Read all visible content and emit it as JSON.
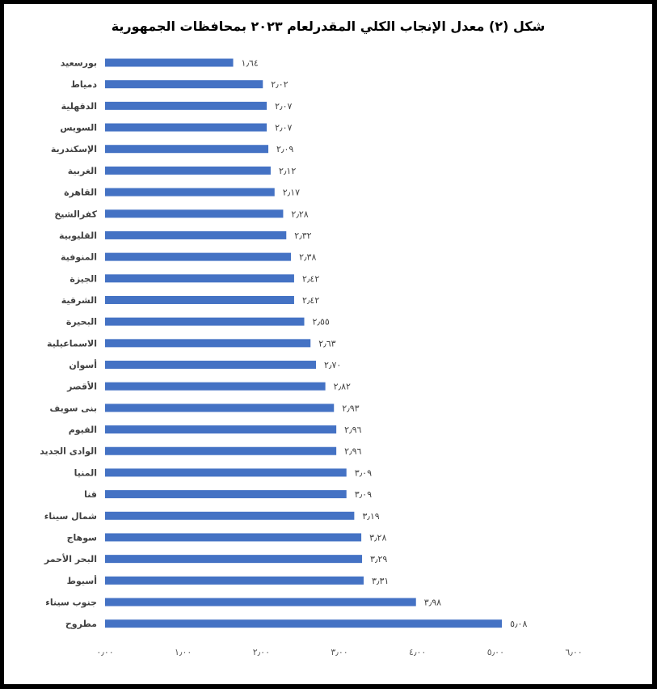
{
  "chart_data": {
    "type": "bar",
    "orientation": "horizontal",
    "title": "شكل (٢) معدل الإنجاب الكلي المقدرلعام ٢٠٢٣ بمحافظات الجمهورية",
    "categories": [
      "بورسعيد",
      "دمياط",
      "الدقهلية",
      "السويس",
      "الإسكندرية",
      "الغربية",
      "القاهرة",
      "كفرالشيخ",
      "القليوبية",
      "المنوفية",
      "الجيزة",
      "الشرقية",
      "البحيرة",
      "الاسماعيلية",
      "أسوان",
      "الأقصر",
      "بنى سويف",
      "الفيوم",
      "الوادى الجديد",
      "المنيا",
      "قنا",
      "شمال سيناء",
      "سوهاج",
      "البحر الأحمر",
      "أسيوط",
      "جنوب سيناء",
      "مطروح"
    ],
    "values": [
      1.64,
      2.02,
      2.07,
      2.07,
      2.09,
      2.12,
      2.17,
      2.28,
      2.32,
      2.38,
      2.42,
      2.42,
      2.55,
      2.63,
      2.7,
      2.82,
      2.93,
      2.96,
      2.96,
      3.09,
      3.09,
      3.19,
      3.28,
      3.29,
      3.31,
      3.98,
      5.08
    ],
    "value_labels": [
      "١٫٦٤",
      "٢٫٠٢",
      "٢٫٠٧",
      "٢٫٠٧",
      "٢٫٠٩",
      "٢٫١٢",
      "٢٫١٧",
      "٢٫٢٨",
      "٢٫٣٢",
      "٢٫٣٨",
      "٢٫٤٢",
      "٢٫٤٢",
      "٢٫٥٥",
      "٢٫٦٣",
      "٢٫٧٠",
      "٢٫٨٢",
      "٢٫٩٣",
      "٢٫٩٦",
      "٢٫٩٦",
      "٣٫٠٩",
      "٣٫٠٩",
      "٣٫١٩",
      "٣٫٢٨",
      "٣٫٢٩",
      "٣٫٣١",
      "٣٫٩٨",
      "٥٫٠٨"
    ],
    "xlim": [
      0,
      6
    ],
    "xticks": [
      0,
      1,
      2,
      3,
      4,
      5,
      6
    ],
    "xtick_labels": [
      "٠٫٠٠",
      "١٫٠٠",
      "٢٫٠٠",
      "٣٫٠٠",
      "٤٫٠٠",
      "٥٫٠٠",
      "٦٫٠٠"
    ],
    "bar_color": "#4472C4",
    "grid": false,
    "legend": "none"
  }
}
